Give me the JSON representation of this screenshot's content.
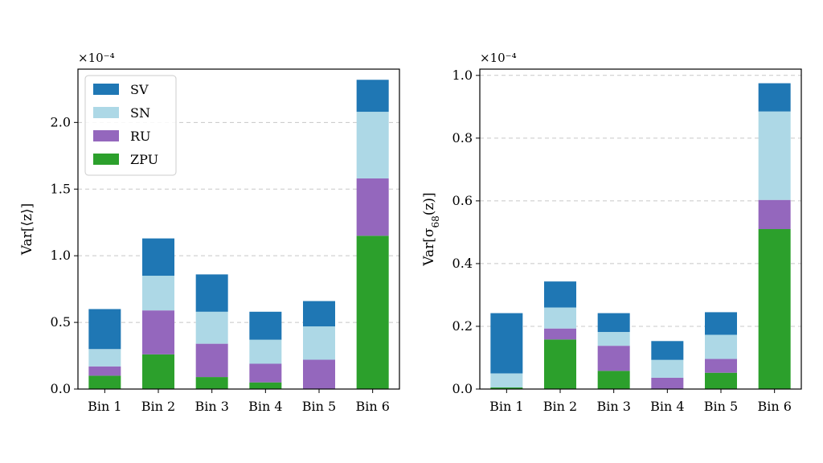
{
  "chart_data": [
    {
      "type": "bar",
      "stacked": true,
      "categories": [
        "Bin 1",
        "Bin 2",
        "Bin 3",
        "Bin 4",
        "Bin 5",
        "Bin 6"
      ],
      "ylabel": "Var[⟨z⟩]",
      "scale_label": "×10⁻⁴",
      "ylim": [
        0,
        2.4
      ],
      "yticks": [
        0.0,
        0.5,
        1.0,
        1.5,
        2.0
      ],
      "ytick_labels": [
        "0.0",
        "0.5",
        "1.0",
        "1.5",
        "2.0"
      ],
      "grid": "horizontal-dashed",
      "legend": "top-left",
      "series": [
        {
          "name": "ZPU",
          "color": "#2ca02c",
          "values": [
            0.1,
            0.26,
            0.09,
            0.05,
            0.0,
            1.15
          ]
        },
        {
          "name": "RU",
          "color": "#9467bd",
          "values": [
            0.07,
            0.33,
            0.25,
            0.14,
            0.22,
            0.43
          ]
        },
        {
          "name": "SN",
          "color": "#add8e6",
          "values": [
            0.13,
            0.26,
            0.24,
            0.18,
            0.25,
            0.5
          ]
        },
        {
          "name": "SV",
          "color": "#1f77b4",
          "values": [
            0.3,
            0.28,
            0.28,
            0.21,
            0.19,
            0.24
          ]
        }
      ]
    },
    {
      "type": "bar",
      "stacked": true,
      "categories": [
        "Bin 1",
        "Bin 2",
        "Bin 3",
        "Bin 4",
        "Bin 5",
        "Bin 6"
      ],
      "ylabel": "Var[σ68(z)]",
      "scale_label": "×10⁻⁴",
      "ylim": [
        0,
        1.02
      ],
      "yticks": [
        0.0,
        0.2,
        0.4,
        0.6,
        0.8,
        1.0
      ],
      "ytick_labels": [
        "0.0",
        "0.2",
        "0.4",
        "0.6",
        "0.8",
        "1.0"
      ],
      "grid": "horizontal-dashed",
      "legend": "none",
      "series": [
        {
          "name": "ZPU",
          "color": "#2ca02c",
          "values": [
            0.005,
            0.158,
            0.058,
            0.0,
            0.052,
            0.51
          ]
        },
        {
          "name": "RU",
          "color": "#9467bd",
          "values": [
            0.0,
            0.035,
            0.08,
            0.036,
            0.044,
            0.093
          ]
        },
        {
          "name": "SN",
          "color": "#add8e6",
          "values": [
            0.045,
            0.067,
            0.044,
            0.057,
            0.077,
            0.282
          ]
        },
        {
          "name": "SV",
          "color": "#1f77b4",
          "values": [
            0.192,
            0.083,
            0.06,
            0.06,
            0.072,
            0.09
          ]
        }
      ]
    }
  ]
}
